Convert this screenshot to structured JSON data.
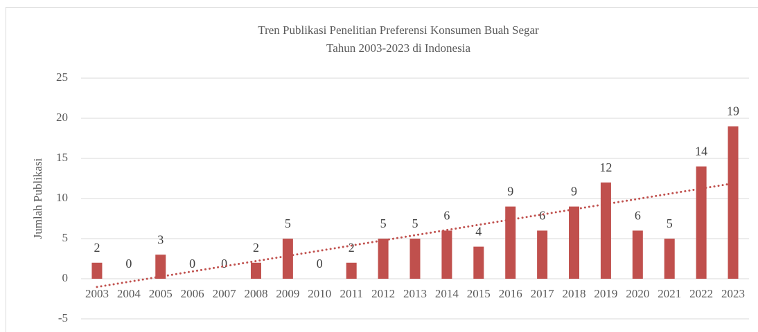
{
  "chart_data": {
    "type": "bar",
    "title": "Tren Publikasi Penelitian Preferensi Konsumen Buah Segar",
    "subtitle": "Tahun 2003-2023 di Indonesia",
    "y_label": "Jumlah Publikasi",
    "categories": [
      "2003",
      "2004",
      "2005",
      "2006",
      "2007",
      "2008",
      "2009",
      "2010",
      "2011",
      "2012",
      "2013",
      "2014",
      "2015",
      "2016",
      "2017",
      "2018",
      "2019",
      "2020",
      "2021",
      "2022",
      "2023"
    ],
    "values": [
      2,
      0,
      3,
      0,
      0,
      2,
      5,
      0,
      2,
      5,
      5,
      6,
      4,
      9,
      6,
      9,
      12,
      6,
      5,
      14,
      19
    ],
    "color": "#c0504d",
    "ylim": [
      -5,
      25
    ],
    "yticks": [
      -5,
      0,
      5,
      10,
      15,
      20,
      25
    ],
    "grid": true,
    "trendline": "linear"
  }
}
